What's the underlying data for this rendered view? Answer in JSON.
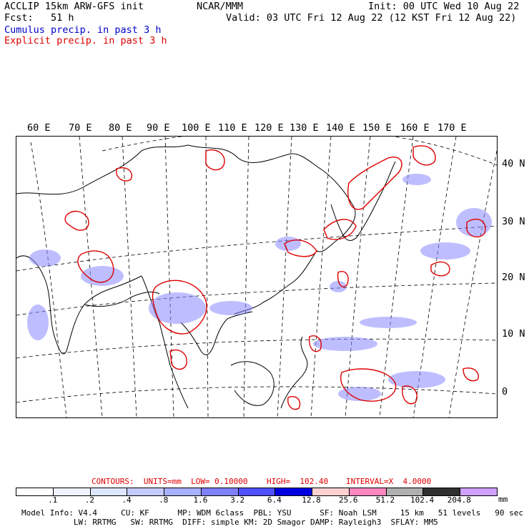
{
  "header": {
    "line1_left": "ACCLIP 15km ARW-GFS init",
    "line1_center": "NCAR/MMM",
    "line1_right": "Init: 00 UTC Wed 10 Aug 22",
    "line2_left": "Fcst:   51 h",
    "line2_right": "Valid: 03 UTC Fri 12 Aug 22 (12 KST Fri 12 Aug 22)",
    "legend_cumulus": "Cumulus precip. in past 3 h",
    "legend_explicit": "Explicit precip. in past 3 h"
  },
  "colors": {
    "cumulus": "#0000cc",
    "explicit": "#dd0000",
    "frame": "#000000"
  },
  "map": {
    "lon_labels": [
      "60 E",
      "70 E",
      "80 E",
      "90 E",
      "100 E",
      "110 E",
      "120 E",
      "130 E",
      "140 E",
      "150 E",
      "160 E",
      "170 E"
    ],
    "lat_labels": [
      "40 N",
      "30 N",
      "20 N",
      "10 N",
      "0"
    ]
  },
  "contours": {
    "units": "CONTOURS:  UNITS=mm  LOW= 0.10000",
    "high": "HIGH=  102.40",
    "interval": "INTERVAL=X  4.0000"
  },
  "colorbar": {
    "labels": [
      ".1",
      ".2",
      ".4",
      ".8",
      "1.6",
      "3.2",
      "6.4",
      "12.8",
      "25.6",
      "51.2",
      "102.4",
      "204.8"
    ],
    "unit": "mm",
    "colors": [
      "#ffffff",
      "#f0f4ff",
      "#dde6ff",
      "#c4ccff",
      "#a8b0ff",
      "#8080ff",
      "#5050ff",
      "#0000e0",
      "#ffd0d0",
      "#ff88c0",
      "#b0b0b0",
      "#303030",
      "#d0a0ff"
    ]
  },
  "model_info": {
    "line1": "Model Info: V4.4     CU: KF      MP: WDM 6class  PBL: YSU      SF: Noah LSM     15 km   51 levels   90 sec",
    "line2": "           LW: RRTMG   SW: RRTMG  DIFF: simple KM: 2D Smagor DAMP: Rayleigh3  SFLAY: MM5"
  }
}
